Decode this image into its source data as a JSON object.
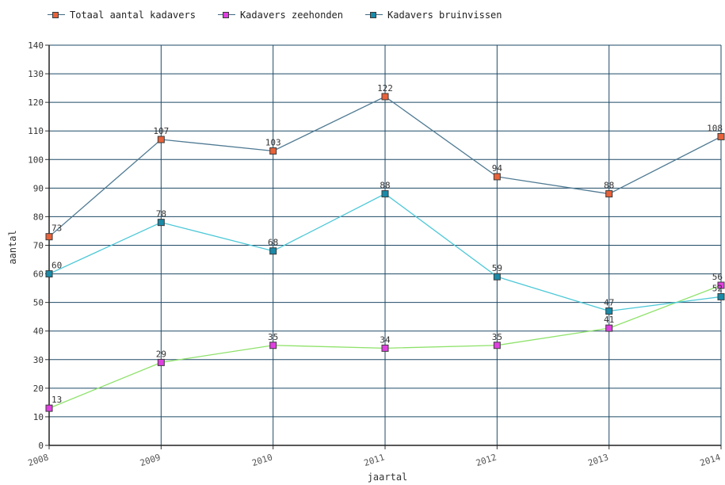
{
  "chart_data": {
    "type": "line",
    "title": "",
    "xlabel": "jaartal",
    "ylabel": "aantal",
    "x": [
      "2008",
      "2009",
      "2010",
      "2011",
      "2012",
      "2013",
      "2014"
    ],
    "ylim": [
      0,
      140
    ],
    "yticks": [
      "0",
      "10",
      "20",
      "30",
      "40",
      "50",
      "60",
      "70",
      "80",
      "90",
      "100",
      "110",
      "120",
      "130",
      "140"
    ],
    "grid": true,
    "legend_position": "top",
    "series": [
      {
        "name": "Totaal aantal kadavers",
        "values": [
          73,
          107,
          103,
          122,
          94,
          88,
          108
        ],
        "line_color": "#4f7a93",
        "marker_color": "#e8623a"
      },
      {
        "name": "Kadavers zeehonden",
        "values": [
          13,
          29,
          35,
          34,
          35,
          41,
          56
        ],
        "line_color": "#8ee26a",
        "marker_color": "#e040e0"
      },
      {
        "name": "Kadavers bruinvissen",
        "values": [
          60,
          78,
          68,
          88,
          59,
          47,
          52
        ],
        "line_color": "#4cc8d8",
        "marker_color": "#1a8aa8"
      }
    ],
    "data_labels": [
      [
        "73",
        "107",
        "103",
        "122",
        "94",
        "88",
        "108"
      ],
      [
        "13",
        "29",
        "35",
        "34",
        "35",
        "41",
        "56"
      ],
      [
        "60",
        "78",
        "68",
        "88",
        "59",
        "47",
        "52"
      ]
    ]
  }
}
